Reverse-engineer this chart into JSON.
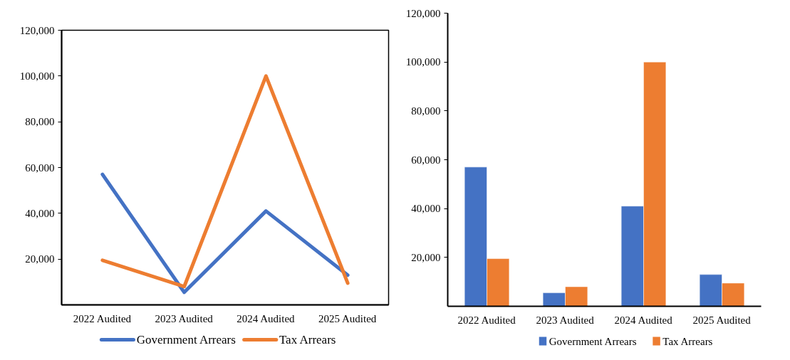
{
  "chart_data": [
    {
      "type": "line",
      "categories": [
        "2022 Audited",
        "2023 Audited",
        "2024 Audited",
        "2025 Audited"
      ],
      "series": [
        {
          "name": "Government Arrears",
          "color": "#4472c4",
          "values": [
            57000,
            5500,
            41000,
            13000
          ]
        },
        {
          "name": "Tax Arrears",
          "color": "#ed7d31",
          "values": [
            19500,
            8000,
            100000,
            9500
          ]
        }
      ],
      "ylim": [
        0,
        120000
      ],
      "yticks": [
        {
          "value": 20000,
          "label": "20,000"
        },
        {
          "value": 40000,
          "label": "40,000"
        },
        {
          "value": 60000,
          "label": "60,000"
        },
        {
          "value": 80000,
          "label": "80,000"
        },
        {
          "value": 100000,
          "label": "100,000"
        },
        {
          "value": 120000,
          "label": "120,000"
        }
      ],
      "grid": false,
      "legend": "bottom",
      "marker": "none",
      "line_style": "solid"
    },
    {
      "type": "bar",
      "categories": [
        "2022 Audited",
        "2023 Audited",
        "2024 Audited",
        "2025 Audited"
      ],
      "series": [
        {
          "name": "Government Arrears",
          "color": "#4472c4",
          "values": [
            57000,
            5500,
            41000,
            13000
          ]
        },
        {
          "name": "Tax Arrears",
          "color": "#ed7d31",
          "values": [
            19500,
            8000,
            100000,
            9500
          ]
        }
      ],
      "ylim": [
        0,
        120000
      ],
      "yticks": [
        {
          "value": 20000,
          "label": "20,000"
        },
        {
          "value": 40000,
          "label": "40,000"
        },
        {
          "value": 60000,
          "label": "60,000"
        },
        {
          "value": 80000,
          "label": "80,000"
        },
        {
          "value": 100000,
          "label": "100,000"
        },
        {
          "value": 120000,
          "label": "120,000"
        }
      ],
      "grid": false,
      "legend": "bottom"
    }
  ]
}
